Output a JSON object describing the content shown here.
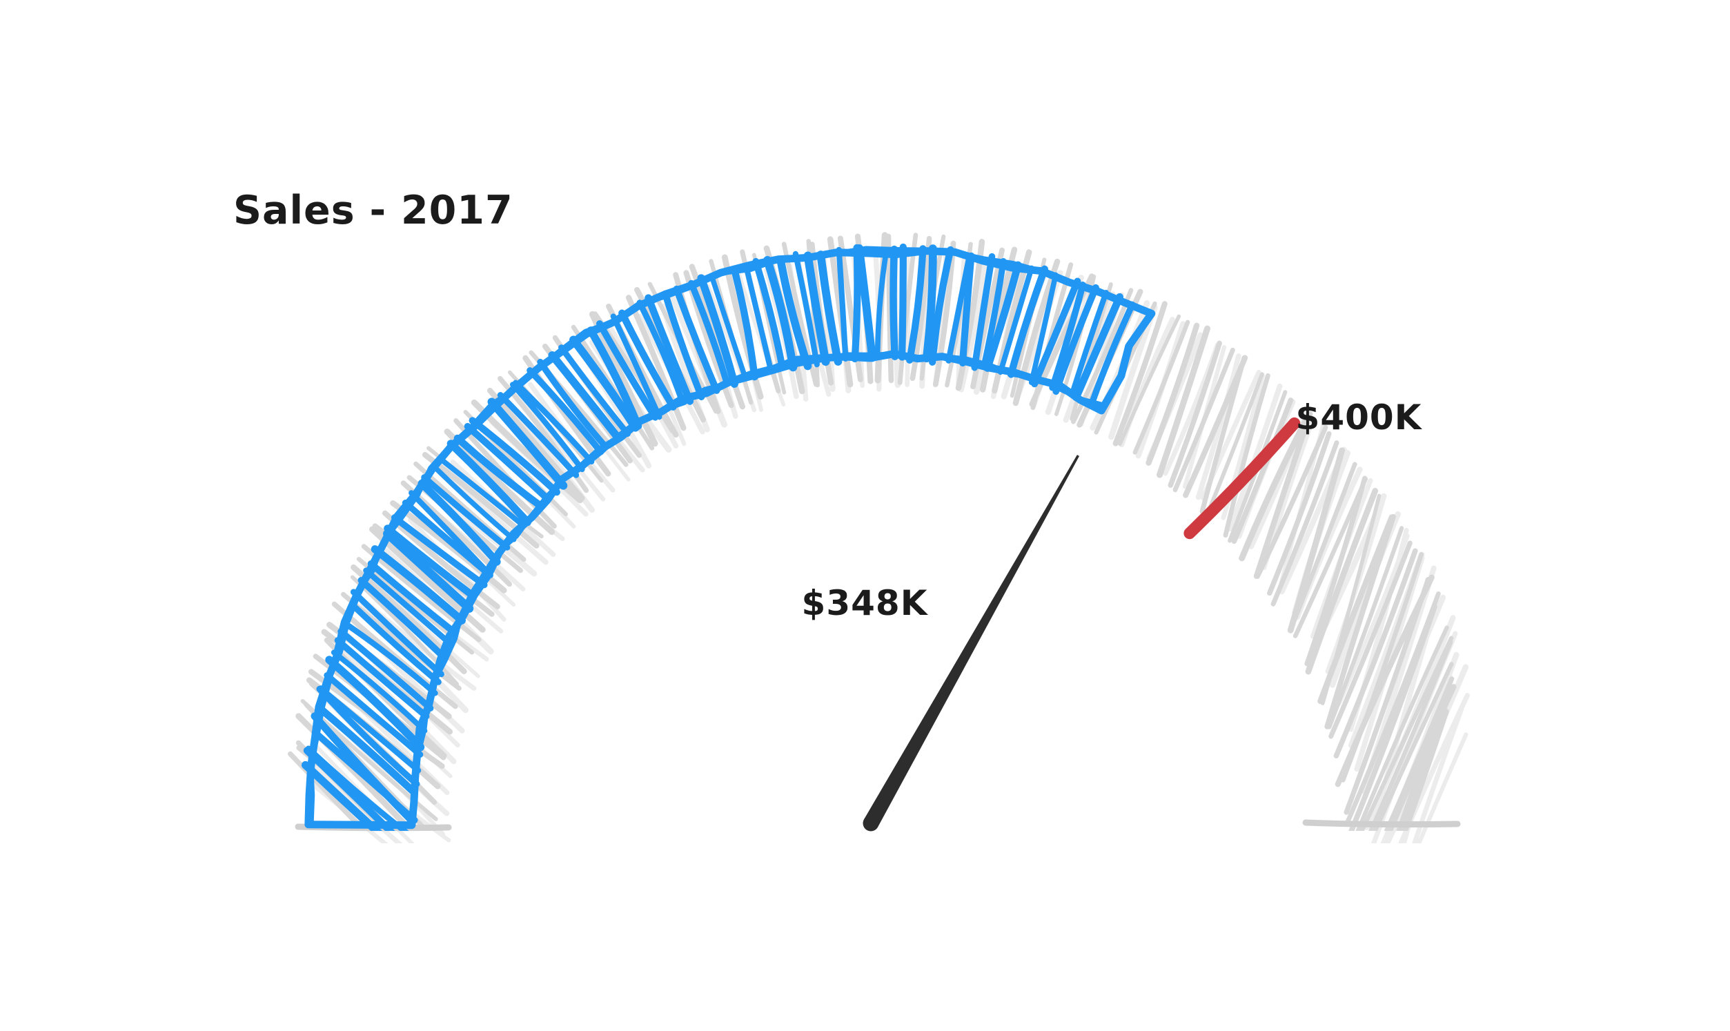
{
  "page": {
    "background": "#ffffff"
  },
  "chart_data": {
    "type": "gauge",
    "shape": "semicircle",
    "style": "hand-drawn sketch with hachure fill",
    "title": "Sales - 2017",
    "value_label": "$348K",
    "value_thousands": 348,
    "target_label": "$400K",
    "target_thousands": 400,
    "value_fraction": 0.652,
    "target_fraction": 0.755,
    "arc_start_deg": 180,
    "arc_end_deg": 0,
    "legend": "none",
    "colors": {
      "value_arc": "#2196f3",
      "track_arc": "#d7d7d7",
      "track_echo": "#ececec",
      "track_baseline": "#cfcfcf",
      "target_marker": "#cf3a40",
      "needle": "#2d2d2d",
      "text": "#1b1b1b",
      "background": "#ffffff"
    }
  }
}
